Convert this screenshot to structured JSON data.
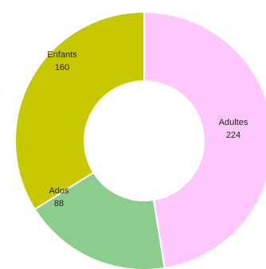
{
  "chart_data": {
    "type": "pie",
    "donut": true,
    "categories": [
      "Adultes",
      "Ados",
      "Enfants"
    ],
    "values": [
      224,
      88,
      160
    ],
    "labels": [
      "Adultes",
      "Ados",
      "Enfants"
    ],
    "value_labels": [
      "224",
      "88",
      "160"
    ],
    "colors": [
      "#ffc8fc",
      "#8ccc8c",
      "#c8c800"
    ],
    "legend": "none",
    "data_labels": "inside-slices"
  }
}
